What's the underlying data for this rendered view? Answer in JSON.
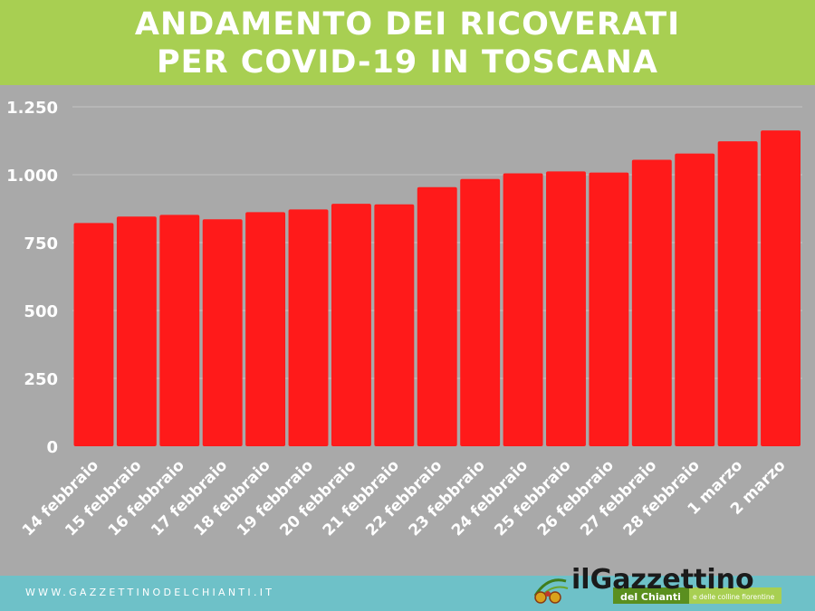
{
  "header": {
    "title_line1": "ANDAMENTO DEI RICOVERATI",
    "title_line2": "PER COVID-19 IN TOSCANA"
  },
  "footer": {
    "website": "WWW.GAZZETTINODELCHIANTI.IT"
  },
  "logo": {
    "name": "ilGazzettino",
    "sub": "del Chianti",
    "tagline": "e delle colline fiorentine"
  },
  "colors": {
    "header_bg": "#a8cf52",
    "plot_bg": "#a9a9a9",
    "bar": "#ff1a1a",
    "footer_bg": "#6ec1c8",
    "logo_green": "#5a8f1f"
  },
  "chart_data": {
    "type": "bar",
    "title": "ANDAMENTO DEI RICOVERATI PER COVID-19 IN TOSCANA",
    "categories": [
      "14 febbraio",
      "15 febbraio",
      "16 febbraio",
      "17 febbraio",
      "18 febbraio",
      "19 febbraio",
      "20 febbraio",
      "21 febbraio",
      "22 febbraio",
      "23 febbraio",
      "24 febbraio",
      "25 febbraio",
      "26 febbraio",
      "27 febbraio",
      "28 febbraio",
      "1 marzo",
      "2 marzo"
    ],
    "values": [
      822,
      846,
      852,
      836,
      862,
      872,
      893,
      891,
      954,
      984,
      1005,
      1012,
      1008,
      1055,
      1078,
      1123,
      1163
    ],
    "ylim": [
      0,
      1250
    ],
    "yticks": [
      0,
      250,
      500,
      750,
      1000,
      1250
    ],
    "ytick_labels": [
      "0",
      "250",
      "500",
      "750",
      "1.000",
      "1.250"
    ],
    "grid": true,
    "xlabel": "",
    "ylabel": ""
  }
}
